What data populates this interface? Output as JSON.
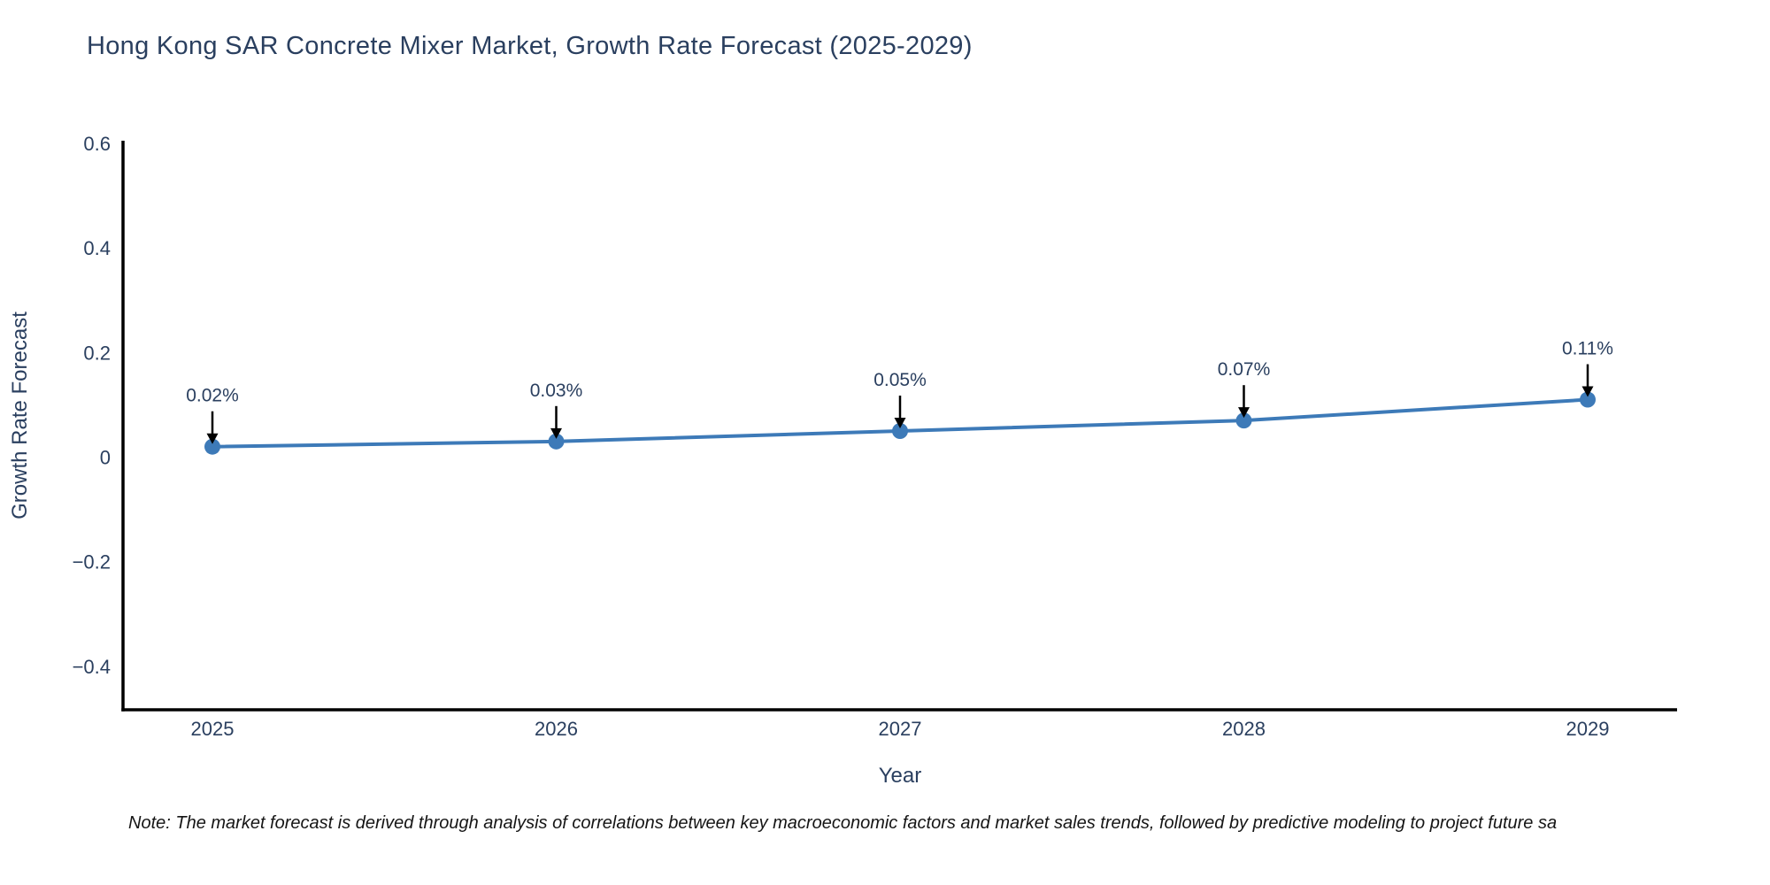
{
  "page": {
    "background": "#ffffff"
  },
  "chart_data": {
    "type": "line",
    "title": "Hong Kong SAR Concrete Mixer Market, Growth Rate Forecast (2025-2029)",
    "xlabel": "Year",
    "ylabel": "Growth Rate Forecast",
    "x": [
      2025,
      2026,
      2027,
      2028,
      2029
    ],
    "series": [
      {
        "name": "Growth Rate Forecast",
        "values": [
          0.02,
          0.03,
          0.05,
          0.07,
          0.11
        ],
        "point_labels": [
          "0.02%",
          "0.03%",
          "0.05%",
          "0.07%",
          "0.11%"
        ]
      }
    ],
    "xticks": [
      2025,
      2026,
      2027,
      2028,
      2029
    ],
    "yticks": [
      0.6,
      0.4,
      0.2,
      0,
      -0.2,
      -0.4
    ],
    "xlim": [
      2024.74,
      2029.26
    ],
    "ylim": [
      -0.483,
      0.605
    ],
    "grid": false,
    "legend_position": "none",
    "line_color": "#3d7ab8",
    "marker_color": "#3d7ab8",
    "axis_color": "#000000",
    "text_color": "#2a3f5f",
    "annotation_color": "#2a3f5f",
    "arrow_color": "#000000"
  },
  "note": "Note: The market forecast is derived through analysis of correlations between key macroeconomic factors and market sales trends, followed by predictive modeling to project future sa"
}
